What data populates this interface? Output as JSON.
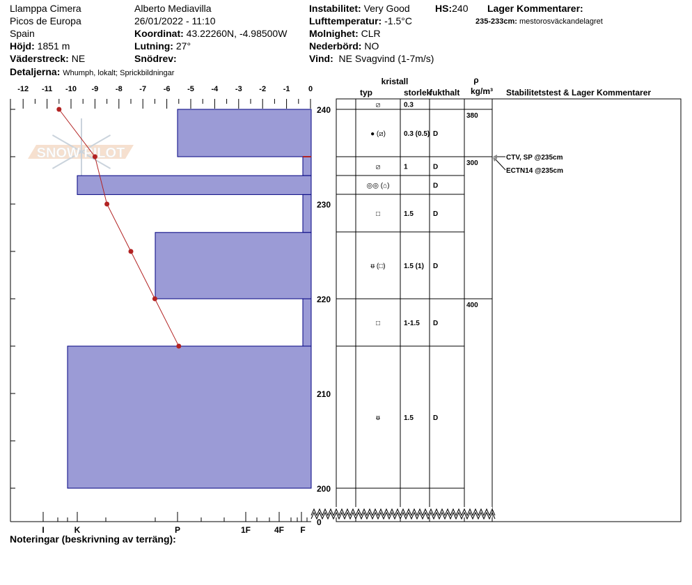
{
  "header": {
    "location": "Llamppa Cimera",
    "range": "Picos de Europa",
    "country": "Spain",
    "elevation_label": "Höjd:",
    "elevation": "1851 m",
    "aspect_label": "Väderstreck:",
    "aspect": "NE",
    "observer": "Alberto Mediavilla",
    "datetime": "26/01/2022 - 11:10",
    "coord_label": "Koordinat:",
    "coord": "43.22260N, -4.98500W",
    "slope_label": "Lutning:",
    "slope": "27°",
    "drift_label": "Snödrev:",
    "drift": "",
    "details_label": "Detaljerna:",
    "details": "Whumph, lokalt; Sprickbildningar",
    "instability_label": "Instabilitet:",
    "instability": "Very Good",
    "hs_label": "HS:",
    "hs": "240",
    "airtemp_label": "Lufttemperatur:",
    "airtemp": "-1.5°C",
    "sky_label": "Molnighet:",
    "sky": "CLR",
    "precip_label": "Nederbörd:",
    "precip": "NO",
    "wind_label": "Vind:",
    "wind": "NE Svagvind (1-7m/s)",
    "layer_comments_label": "Lager Kommentarer:",
    "layer_comment_range": "235-233cm:",
    "layer_comment": "mestorosväckandelagret"
  },
  "table_header": {
    "crystal": "kristall",
    "type": "typ",
    "size": "storlek",
    "moisture": "fukthalt",
    "rho": "ρ",
    "density_unit": "kg/m³",
    "comments": "Stabilitetstest & Lager Kommentarer"
  },
  "layers": [
    {
      "top": 241,
      "bottom": 240,
      "type": "⧄",
      "size": "0.3",
      "moisture": ""
    },
    {
      "top": 240,
      "bottom": 235,
      "type": "● (⧄)",
      "size": "0.3 (0.5)",
      "moisture": "D"
    },
    {
      "top": 235,
      "bottom": 233,
      "type": "⧄",
      "size": "1",
      "moisture": "D"
    },
    {
      "top": 233,
      "bottom": 231,
      "type": "◎◎ (⌂)",
      "size": "",
      "moisture": "D"
    },
    {
      "top": 231,
      "bottom": 227,
      "type": "□",
      "size": "1.5",
      "moisture": "D"
    },
    {
      "top": 227,
      "bottom": 220,
      "type": "ᵿ (□)",
      "size": "1.5 (1)",
      "moisture": "D"
    },
    {
      "top": 220,
      "bottom": 215,
      "type": "□",
      "size": "1-1.5",
      "moisture": "D"
    },
    {
      "top": 215,
      "bottom": 200,
      "type": "ᵿ",
      "size": "1.5",
      "moisture": "D"
    }
  ],
  "densities": [
    {
      "top": 240,
      "value": "380"
    },
    {
      "top": 235,
      "value": "300"
    },
    {
      "top": 220,
      "value": "400"
    }
  ],
  "stability_tests": [
    "CTV, SP @235cm",
    "ECTN14 @235cm"
  ],
  "notes_label": "Noteringar (beskrivning av terräng):",
  "chart_data": {
    "type": "bar",
    "x_temp_ticks": [
      "-12",
      "-11",
      "-10",
      "-9",
      "-8",
      "-7",
      "-6",
      "-5",
      "-4",
      "-3",
      "-2",
      "-1",
      "0"
    ],
    "temp_range": [
      -12,
      0
    ],
    "height_ticks": [
      "240",
      "230",
      "220",
      "210",
      "200",
      "0"
    ],
    "height_range": [
      200,
      240
    ],
    "hardness_ticks": [
      "I",
      "K",
      "P",
      "1F",
      "4F",
      "F"
    ],
    "hardness_profile": [
      {
        "top": 240,
        "bottom": 235,
        "hardness": "P"
      },
      {
        "top": 235,
        "bottom": 233,
        "hardness": "F"
      },
      {
        "top": 233,
        "bottom": 231,
        "hardness": "K"
      },
      {
        "top": 231,
        "bottom": 227,
        "hardness": "F"
      },
      {
        "top": 227,
        "bottom": 220,
        "hardness": "P+"
      },
      {
        "top": 220,
        "bottom": 215,
        "hardness": "F"
      },
      {
        "top": 215,
        "bottom": 200,
        "hardness": "K+"
      }
    ],
    "temperature_profile": [
      {
        "height": 240,
        "temp": -10.5
      },
      {
        "height": 235,
        "temp": -9.0
      },
      {
        "height": 230,
        "temp": -8.5
      },
      {
        "height": 225,
        "temp": -7.5
      },
      {
        "height": 220,
        "temp": -6.5
      },
      {
        "height": 215,
        "temp": -5.5
      }
    ],
    "colors": {
      "hardness_fill": "#9b9bd6",
      "hardness_stroke": "#000080",
      "temperature": "#b22222"
    },
    "watermark": "SNOW PILOT"
  }
}
